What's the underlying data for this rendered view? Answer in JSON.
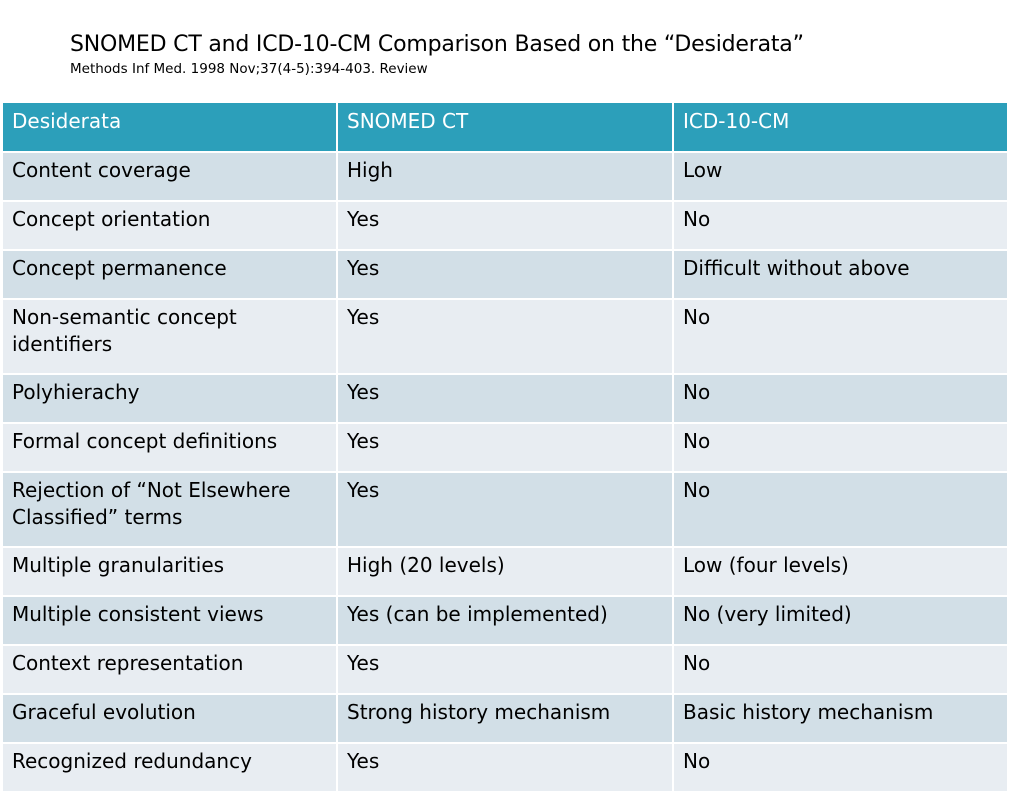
{
  "slide": {
    "title": "SNOMED CT and ICD-10-CM Comparison Based on the “Desiderata”",
    "subtitle": "Methods Inf Med. 1998 Nov;37(4-5):394-403. Review"
  },
  "colors": {
    "header_bg": "#2c9fba",
    "row_even_bg": "#d2dfe7",
    "row_odd_bg": "#e8edf2"
  },
  "table": {
    "headers": [
      "Desiderata",
      "SNOMED CT",
      "ICD-10-CM"
    ],
    "rows": [
      [
        "Content coverage",
        "High",
        "Low"
      ],
      [
        "Concept orientation",
        "Yes",
        "No"
      ],
      [
        "Concept permanence",
        "Yes",
        "Difficult without above"
      ],
      [
        "Non-semantic concept identifiers",
        "Yes",
        "No"
      ],
      [
        "Polyhierachy",
        "Yes",
        "No"
      ],
      [
        "Formal concept definitions",
        "Yes",
        "No"
      ],
      [
        "Rejection of “Not Elsewhere Classified” terms",
        "Yes",
        "No"
      ],
      [
        "Multiple granularities",
        "High (20 levels)",
        "Low (four levels)"
      ],
      [
        "Multiple consistent views",
        "Yes (can be implemented)",
        "No (very limited)"
      ],
      [
        "Context representation",
        "Yes",
        "No"
      ],
      [
        "Graceful evolution",
        "Strong history mechanism",
        "Basic history mechanism"
      ],
      [
        "Recognized redundancy",
        "Yes",
        "No"
      ]
    ]
  }
}
